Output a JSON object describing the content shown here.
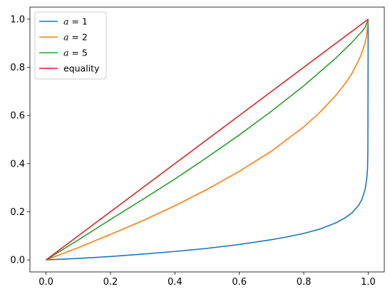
{
  "chart_data": {
    "type": "line",
    "title": "",
    "xlabel": "",
    "ylabel": "",
    "xlim": [
      -0.05,
      1.05
    ],
    "ylim": [
      -0.05,
      1.05
    ],
    "xticks": [
      0.0,
      0.2,
      0.4,
      0.6,
      0.8,
      1.0
    ],
    "yticks": [
      0.0,
      0.2,
      0.4,
      0.6,
      0.8,
      1.0
    ],
    "xtick_labels": [
      "0.0",
      "0.2",
      "0.4",
      "0.6",
      "0.8",
      "1.0"
    ],
    "ytick_labels": [
      "0.0",
      "0.2",
      "0.4",
      "0.6",
      "0.8",
      "1.0"
    ],
    "grid": false,
    "legend_position": "top-left",
    "series": [
      {
        "var": "a",
        "eq": " = ",
        "val": "1",
        "color": "#1f77b4",
        "x": [
          0.0,
          0.1,
          0.2,
          0.3,
          0.4,
          0.5,
          0.6,
          0.7,
          0.75,
          0.8,
          0.85,
          0.9,
          0.93,
          0.95,
          0.97,
          0.98,
          0.99,
          0.995,
          0.998,
          0.999,
          1.0
        ],
        "y": [
          0.0,
          0.006,
          0.014,
          0.024,
          0.035,
          0.048,
          0.064,
          0.084,
          0.096,
          0.11,
          0.128,
          0.154,
          0.176,
          0.196,
          0.226,
          0.25,
          0.29,
          0.33,
          0.38,
          0.45,
          1.0
        ]
      },
      {
        "var": "a",
        "eq": " = ",
        "val": "2",
        "color": "#ff7f0e",
        "x": [
          0.0,
          0.1,
          0.2,
          0.3,
          0.4,
          0.5,
          0.6,
          0.7,
          0.8,
          0.85,
          0.9,
          0.93,
          0.95,
          0.97,
          0.98,
          0.99,
          0.995,
          1.0
        ],
        "y": [
          0.0,
          0.051,
          0.106,
          0.163,
          0.225,
          0.293,
          0.368,
          0.452,
          0.553,
          0.613,
          0.684,
          0.735,
          0.776,
          0.827,
          0.859,
          0.9,
          0.929,
          1.0
        ]
      },
      {
        "var": "a",
        "eq": " = ",
        "val": "5",
        "color": "#2ca02c",
        "x": [
          0.0,
          0.1,
          0.2,
          0.3,
          0.4,
          0.5,
          0.6,
          0.7,
          0.8,
          0.9,
          0.95,
          0.98,
          0.99,
          1.0
        ],
        "y": [
          0.0,
          0.083,
          0.168,
          0.251,
          0.336,
          0.426,
          0.519,
          0.618,
          0.723,
          0.839,
          0.904,
          0.948,
          0.965,
          1.0
        ]
      },
      {
        "label": "equality",
        "color": "#d62728",
        "x": [
          0.0,
          1.0
        ],
        "y": [
          0.0,
          1.0
        ]
      }
    ]
  }
}
